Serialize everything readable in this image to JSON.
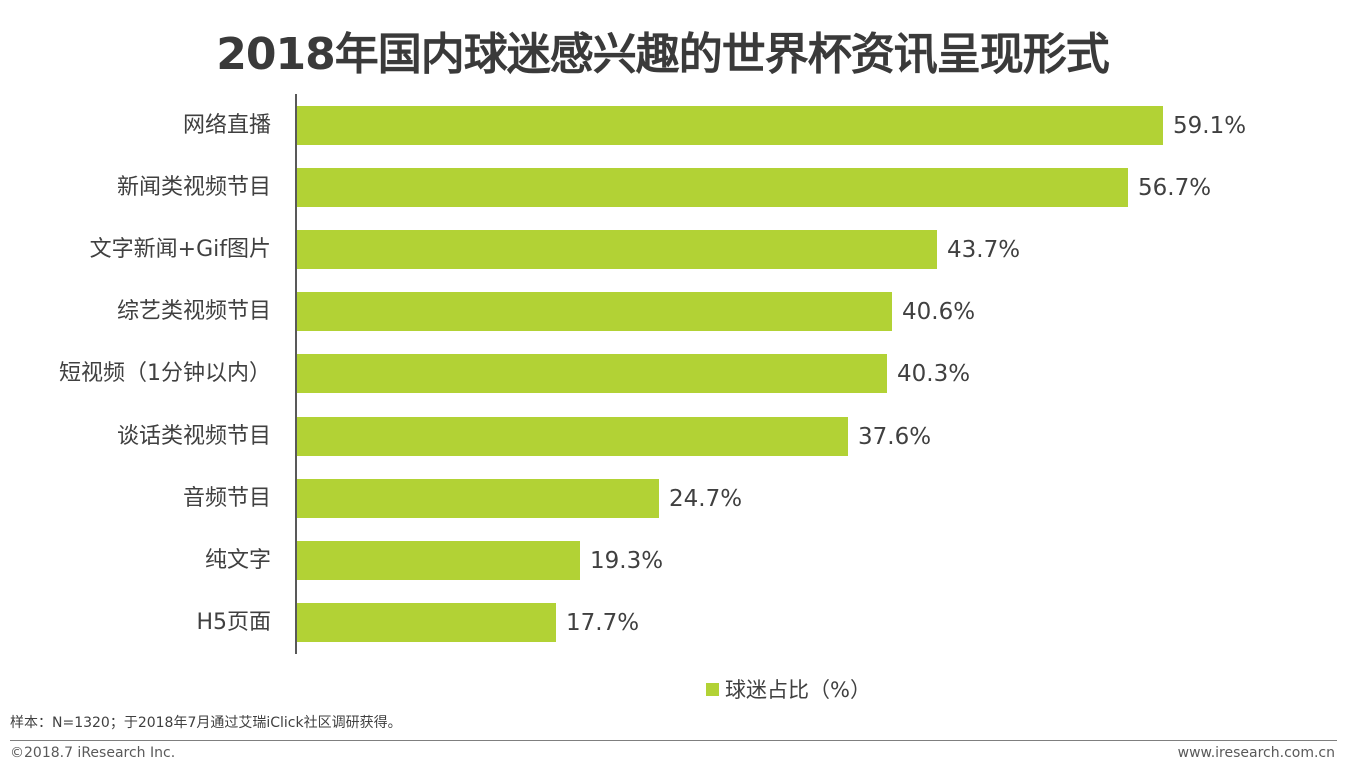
{
  "title": "2018年国内球迷感兴趣的世界杯资讯呈现形式",
  "legend": {
    "label": "球迷占比（%）",
    "color": "#b2d235"
  },
  "footer": {
    "note": "样本：N=1320；于2018年7月通过艾瑞iClick社区调研获得。",
    "copyright": "©2018.7 iResearch Inc.",
    "url": "www.iresearch.com.cn"
  },
  "bars": [
    {
      "label": "网络直播",
      "value": 59.1,
      "text": "59.1%"
    },
    {
      "label": "新闻类视频节目",
      "value": 56.7,
      "text": "56.7%"
    },
    {
      "label": "文字新闻+Gif图片",
      "value": 43.7,
      "text": "43.7%"
    },
    {
      "label": "综艺类视频节目",
      "value": 40.6,
      "text": "40.6%"
    },
    {
      "label": "短视频（1分钟以内）",
      "value": 40.3,
      "text": "40.3%"
    },
    {
      "label": "谈话类视频节目",
      "value": 37.6,
      "text": "37.6%"
    },
    {
      "label": "音频节目",
      "value": 24.7,
      "text": "24.7%"
    },
    {
      "label": "纯文字",
      "value": 19.3,
      "text": "19.3%"
    },
    {
      "label": "H5页面",
      "value": 17.7,
      "text": "17.7%"
    }
  ],
  "chart_data": {
    "type": "bar",
    "orientation": "horizontal",
    "title": "2018年国内球迷感兴趣的世界杯资讯呈现形式",
    "categories": [
      "网络直播",
      "新闻类视频节目",
      "文字新闻+Gif图片",
      "综艺类视频节目",
      "短视频（1分钟以内）",
      "谈话类视频节目",
      "音频节目",
      "纯文字",
      "H5页面"
    ],
    "series": [
      {
        "name": "球迷占比（%）",
        "values": [
          59.1,
          56.7,
          43.7,
          40.6,
          40.3,
          37.6,
          24.7,
          19.3,
          17.7
        ],
        "color": "#b2d235"
      }
    ],
    "xlabel": "",
    "ylabel": "",
    "grid": false,
    "legend_position": "bottom",
    "data_labels": true
  }
}
